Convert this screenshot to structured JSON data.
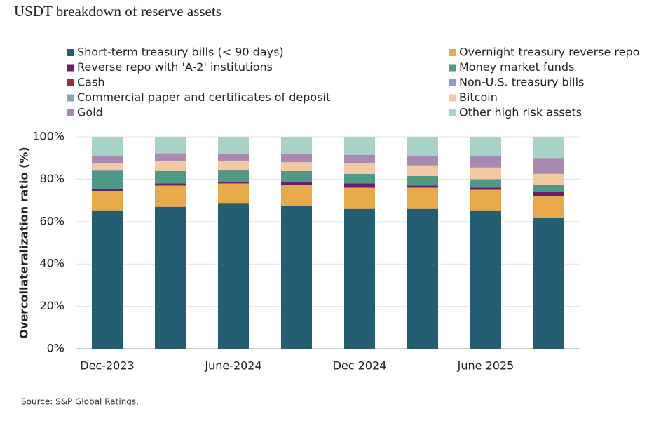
{
  "chart_data": {
    "type": "bar",
    "stacked": true,
    "title": "USDT breakdown of reserve assets",
    "y_label": "Overcollateralization ratio (%)",
    "source": "Source: S&P Global Ratings.",
    "categories": [
      "Dec-2023",
      null,
      "June-2024",
      null,
      "Dec 2024",
      null,
      "June 2025",
      null
    ],
    "ylim": [
      0,
      100
    ],
    "yticks": [
      {
        "value": 0,
        "label": "0%"
      },
      {
        "value": 20,
        "label": "20%"
      },
      {
        "value": 40,
        "label": "40%"
      },
      {
        "value": 60,
        "label": "60%"
      },
      {
        "value": 80,
        "label": "80%"
      },
      {
        "value": 100,
        "label": "100%"
      }
    ],
    "grid": true,
    "series": [
      {
        "name": "Short-term treasury bills (< 90 days)",
        "color": "#245e73",
        "values": [
          65,
          67,
          68.5,
          67.3,
          66,
          66,
          65,
          62
        ]
      },
      {
        "name": "Overnight treasury reverse repo",
        "color": "#e8a94b",
        "values": [
          9.5,
          10,
          9.5,
          10,
          10,
          10,
          10,
          10
        ]
      },
      {
        "name": "Reverse repo with 'A-2' institutions",
        "color": "#6b1f6b",
        "values": [
          1,
          1,
          0.8,
          1.5,
          2,
          1,
          1,
          2
        ]
      },
      {
        "name": "Money market funds",
        "color": "#4f9a86",
        "values": [
          8.5,
          6,
          5.5,
          5,
          4.5,
          4.5,
          4,
          3.5
        ]
      },
      {
        "name": "Cash",
        "color": "#9c2a3a",
        "values": [
          0.2,
          0.1,
          0.1,
          0.1,
          0,
          0,
          0,
          0
        ]
      },
      {
        "name": "Non-U.S. treasury bills",
        "color": "#8d9ec6",
        "values": [
          0.3,
          0.1,
          0.1,
          0.1,
          0,
          0,
          0,
          0
        ]
      },
      {
        "name": "Commercial paper and certificates of deposit",
        "color": "#8aa7b9",
        "values": [
          0,
          0,
          0,
          0,
          0,
          0,
          0,
          0
        ]
      },
      {
        "name": "Bitcoin",
        "color": "#f2c9a0",
        "values": [
          3,
          4.5,
          4,
          4,
          5,
          5,
          5.5,
          5
        ]
      },
      {
        "name": "Gold",
        "color": "#a889b0",
        "values": [
          3.5,
          3.5,
          3.5,
          3.8,
          4,
          4.5,
          5.5,
          7.5
        ]
      },
      {
        "name": "Other high risk assets",
        "color": "#a6d3c6",
        "values": [
          9,
          7.8,
          8,
          8.2,
          8.5,
          9,
          9,
          10
        ]
      }
    ]
  }
}
